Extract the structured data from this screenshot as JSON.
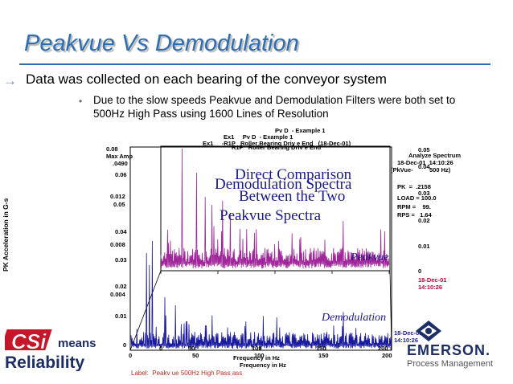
{
  "slide": {
    "title": "Peakvue Vs Demodulation",
    "bullet1": "Data was collected on each bearing of the conveyor system",
    "bullet2": "Due to the slow speeds Peakvue and Demodulation Filters were both set to 500Hz High Pass using 1600 Lines of Resolution",
    "arrow_glyph": "→",
    "dot_glyph": "•"
  },
  "chart": {
    "header1": "Pv D  - Example 1",
    "header2": "Ex1     Pv D  - Example 1",
    "header3": "Ex1     -R1P   Roller Bearing Driv e End   (18-Dec-01)",
    "header4": "R1P   Roller Bearing Driv e End",
    "analyze": "Analyze Spectrum",
    "date_time_top": "18-Dec-01  14:10:26",
    "pkvue": "(PkVue-",
    "pkvue_hz": "500 Hz)",
    "pk": "PK  =  .2158",
    "load": "LOAD = 100.0",
    "rpm": "RPM =    99.",
    "rps": "RPS =   1.64",
    "date_mid": "18-Dec-01",
    "time_mid": "14:10:26",
    "date_bot": "18-Dec-01",
    "time_bot": "14:10:26",
    "max_amp": "Max Amp",
    "max_amp_val": ".0490",
    "y_labels_left": [
      "0.08",
      "0.06",
      "0.012",
      "0.05",
      "0.04",
      "0.008",
      "0.03",
      "0.02",
      "0.004",
      "0.01",
      "0"
    ],
    "y_labels_right": [
      "0.05",
      "0.04",
      "0.03",
      "0.02",
      "0.01",
      "0"
    ],
    "x_labels_back": [
      "0",
      "50",
      "100",
      "150",
      "200"
    ],
    "x_labels_front": [
      "0",
      "50",
      "100",
      "150",
      "200"
    ],
    "x_axis_title1": "Frequency in Hz",
    "x_axis_title2": "Frequency in Hz",
    "y_axis_title": "PK Acceleration in G-s",
    "overlay_comparison1": "Direct Comparison",
    "overlay_comparison2": "Between the Two",
    "overlay_demod_spectra": "Demodulation Spectra",
    "overlay_peakvue_spectra": "Peakvue Spectra",
    "peakvue_label": "Peakvue",
    "demod_label": "Demodulation",
    "footer_label": "Label:  Peakv ue 500Hz High Pass ass",
    "colors": {
      "peakvue": "#a0249a",
      "demod": "#1a1aa0",
      "frame": "#000000"
    }
  },
  "logos": {
    "csi_text": "CSi",
    "means": "means",
    "reliability": "Reliability",
    "emerson": "EMERSON.",
    "process_management": "Process Management"
  }
}
